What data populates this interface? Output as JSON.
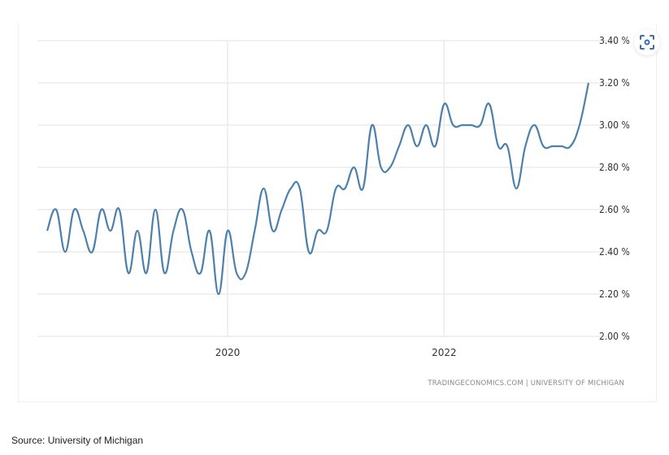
{
  "chart_data": {
    "type": "line",
    "x_start": "2018-05",
    "x_end": "2023-05",
    "frequency": "monthly",
    "x_tick_labels": [
      "2020",
      "2022"
    ],
    "x_tick_values": [
      "2020-01",
      "2022-01"
    ],
    "y_tick_labels": [
      "2.00 %",
      "2.20 %",
      "2.40 %",
      "2.60 %",
      "2.80 %",
      "3.00 %",
      "3.20 %",
      "3.40 %"
    ],
    "ylim": [
      2.0,
      3.4
    ],
    "grid": true,
    "y_axis_side": "right",
    "series": [
      {
        "color": "#4d80ab",
        "values": [
          2.5,
          2.6,
          2.4,
          2.6,
          2.5,
          2.4,
          2.6,
          2.5,
          2.6,
          2.3,
          2.5,
          2.3,
          2.6,
          2.3,
          2.5,
          2.6,
          2.4,
          2.3,
          2.5,
          2.2,
          2.5,
          2.3,
          2.3,
          2.5,
          2.7,
          2.5,
          2.6,
          2.7,
          2.7,
          2.4,
          2.5,
          2.5,
          2.7,
          2.7,
          2.8,
          2.7,
          3.0,
          2.8,
          2.8,
          2.9,
          3.0,
          2.9,
          3.0,
          2.9,
          3.1,
          3.0,
          3.0,
          3.0,
          3.0,
          3.1,
          2.9,
          2.9,
          2.7,
          2.9,
          3.0,
          2.9,
          2.9,
          2.9,
          2.9,
          3.0,
          3.2
        ]
      }
    ],
    "attribution": "TRADINGECONOMICS.COM | UNIVERSITY OF MICHIGAN"
  },
  "icon": "screenshot-focus-icon",
  "source_note": "Source: University of Michigan"
}
